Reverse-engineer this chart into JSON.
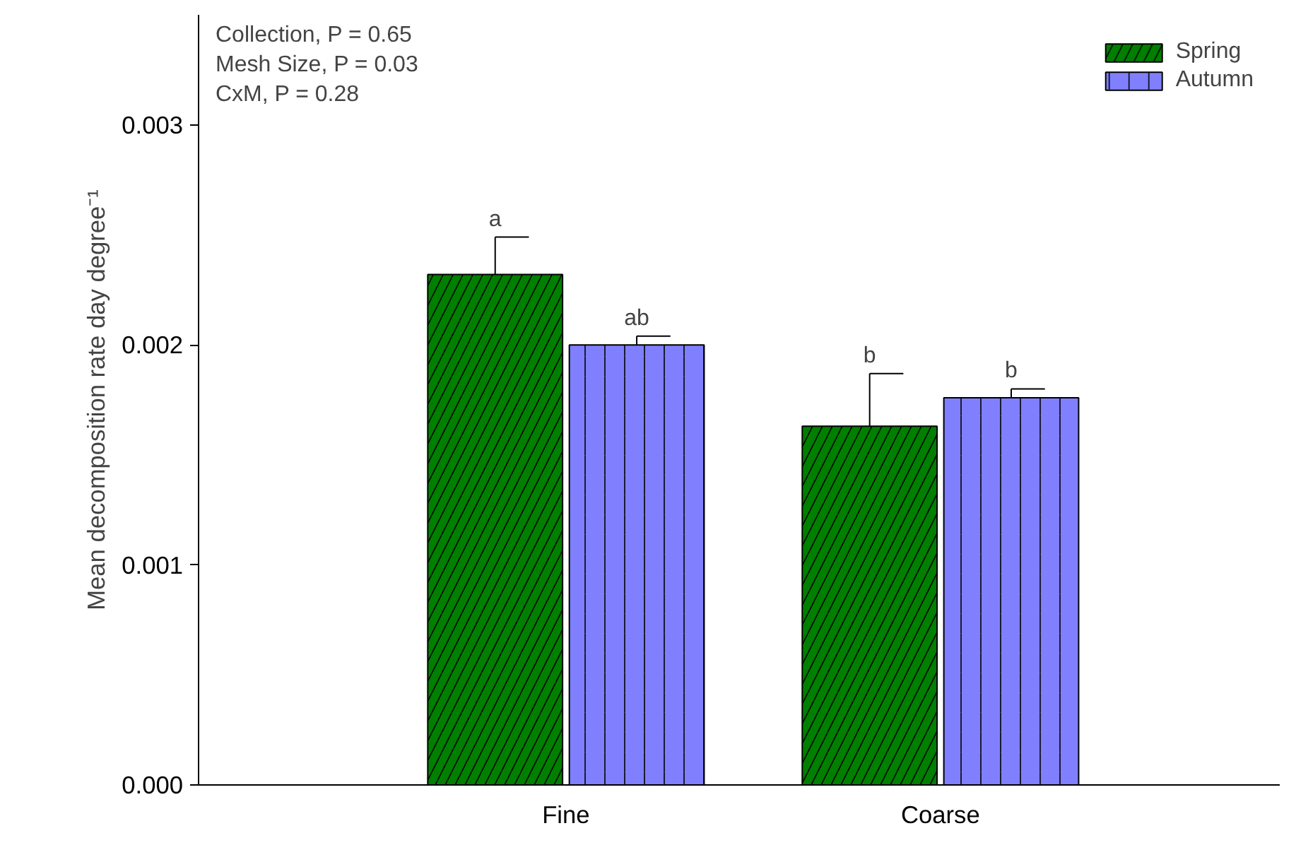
{
  "chart_data": {
    "type": "bar",
    "ylabel": "Mean decomposition rate day degree⁻¹",
    "categories": [
      "Fine",
      "Coarse"
    ],
    "series": [
      {
        "name": "Spring",
        "color": "#007f00",
        "values": [
          0.00232,
          0.00163
        ],
        "errors": [
          [
            0.00232,
            0.00249
          ],
          [
            0.00163,
            0.00187
          ]
        ]
      },
      {
        "name": "Autumn",
        "color": "#8080ff",
        "values": [
          0.002,
          0.00176
        ],
        "errors": [
          [
            0.002,
            0.00204
          ],
          [
            0.00176,
            0.0018
          ]
        ]
      }
    ],
    "ylim": [
      0,
      0.0035
    ],
    "yticks": [
      {
        "value": 0,
        "label": "0.000"
      },
      {
        "value": 0.001,
        "label": "0.001"
      },
      {
        "value": 0.002,
        "label": "0.002"
      },
      {
        "value": 0.003,
        "label": "0.003"
      }
    ],
    "grid": false,
    "legend": "top right",
    "annotations": [
      "Collection, P = 0.65",
      "Mesh Size, P = 0.03",
      "CxM, P = 0.28",
      "a",
      "ab",
      "b",
      "b"
    ]
  }
}
